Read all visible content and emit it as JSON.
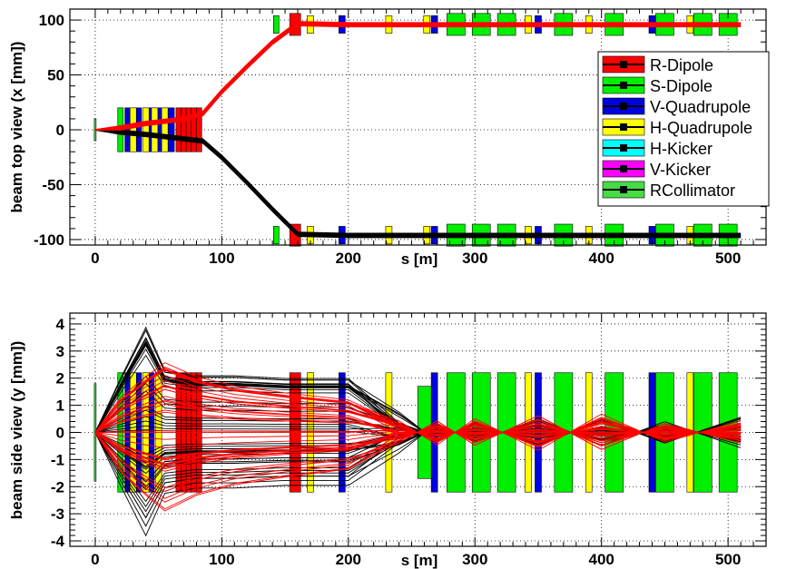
{
  "colors": {
    "r_dipole": "#ff0000",
    "s_dipole": "#00ee00",
    "v_quadrupole": "#0000dd",
    "h_quadrupole": "#ffff00",
    "h_kicker": "#00ffff",
    "v_kicker": "#ff00ff",
    "rcollimator": "#44dd44",
    "beam_a": "#000000",
    "beam_b": "#ff0000"
  },
  "legend": [
    {
      "label": "R-Dipole",
      "color": "#ff0000"
    },
    {
      "label": "S-Dipole",
      "color": "#00ee00"
    },
    {
      "label": "V-Quadrupole",
      "color": "#0000dd"
    },
    {
      "label": "H-Quadrupole",
      "color": "#ffff00"
    },
    {
      "label": "H-Kicker",
      "color": "#00ffff"
    },
    {
      "label": "V-Kicker",
      "color": "#ff00ff"
    },
    {
      "label": "RCollimator",
      "color": "#44dd44"
    }
  ],
  "chart_data": [
    {
      "type": "line",
      "ylabel": "beam top view (x [mm])",
      "xlabel": "s [m]",
      "xlim": [
        -20,
        530
      ],
      "ylim": [
        -105,
        110
      ],
      "xticks": [
        0,
        100,
        200,
        300,
        400,
        500
      ],
      "yticks": [
        -100,
        -50,
        0,
        50,
        100
      ],
      "grid": true,
      "legend_position": "right",
      "series": [
        {
          "color": "#000000",
          "x": [
            0,
            20,
            40,
            55,
            70,
            85,
            100,
            120,
            140,
            160,
            200,
            260,
            300,
            400,
            510
          ],
          "y": [
            0,
            -2,
            -4,
            -6,
            -8,
            -10,
            -25,
            -48,
            -72,
            -95,
            -96,
            -96,
            -96,
            -96,
            -96
          ]
        },
        {
          "color": "#ff0000",
          "x": [
            0,
            20,
            40,
            55,
            70,
            85,
            100,
            120,
            140,
            160,
            200,
            260,
            300,
            400,
            510
          ],
          "y": [
            0,
            2,
            6,
            8,
            10,
            15,
            35,
            58,
            80,
            97,
            96,
            96,
            96,
            96,
            96
          ]
        }
      ],
      "elements": [
        {
          "kind": "v_quadrupole",
          "s": [
            26,
            34,
            44,
            50,
            60,
            195,
            268,
            350,
            440
          ],
          "half_width": [
            20,
            20,
            20,
            20,
            20,
            8,
            8,
            8,
            8
          ],
          "offset": [
            0,
            0,
            0,
            0,
            0,
            96,
            96,
            96,
            96
          ]
        },
        {
          "kind": "h_quadrupole",
          "s": [
            30,
            40,
            47,
            55,
            170,
            232,
            262,
            342,
            390,
            470
          ],
          "half_width": [
            20,
            20,
            20,
            20,
            8,
            8,
            8,
            8,
            8,
            8
          ],
          "offset": [
            0,
            0,
            0,
            0,
            96,
            96,
            96,
            96,
            96,
            96
          ]
        },
        {
          "kind": "r_dipole",
          "s": [
            66,
            70,
            74,
            78,
            82,
            158
          ],
          "half_width": [
            20,
            20,
            20,
            20,
            20,
            10
          ],
          "offset": [
            0,
            0,
            0,
            0,
            0,
            96
          ]
        },
        {
          "kind": "s_dipole",
          "s": [
            20,
            143,
            285,
            305,
            325,
            370,
            410,
            450,
            480,
            500
          ],
          "half_width": [
            20,
            8,
            10,
            10,
            10,
            10,
            10,
            10,
            10,
            10
          ],
          "offset": [
            0,
            96,
            96,
            96,
            96,
            96,
            96,
            96,
            96,
            96
          ]
        },
        {
          "kind": "rcollimator",
          "s": [
            0
          ],
          "half_width": [
            10
          ],
          "offset": [
            0
          ]
        }
      ]
    },
    {
      "type": "line",
      "ylabel": "beam side view (y [mm])",
      "xlabel": "s [m]",
      "xlim": [
        -20,
        530
      ],
      "ylim": [
        -4.2,
        4.4
      ],
      "xticks": [
        0,
        100,
        200,
        300,
        400,
        500
      ],
      "yticks": [
        -4,
        -3,
        -2,
        -1,
        0,
        1,
        2,
        3,
        4
      ],
      "grid": true,
      "envelope": {
        "s": [
          0,
          20,
          40,
          55,
          80,
          110,
          150,
          200,
          240,
          270,
          300,
          350,
          400,
          450,
          510
        ],
        "black_max": [
          0,
          2.0,
          3.9,
          2.3,
          2.1,
          2.1,
          2.0,
          2.0,
          0.8,
          0.6,
          0.4,
          0.9,
          0.5,
          0.7,
          0.6
        ],
        "red_max": [
          0,
          1.5,
          2.4,
          3.0,
          2.4,
          2.0,
          1.7,
          1.4,
          0.5,
          0.9,
          0.6,
          1.3,
          0.8,
          0.7,
          0.5
        ]
      },
      "elements": [
        {
          "kind": "s_dipole",
          "s": [
            20,
            262,
            285,
            305,
            325,
            370,
            410,
            450,
            480,
            500
          ],
          "half_height": [
            2.2,
            1.7,
            2.2,
            2.2,
            2.2,
            2.2,
            2.2,
            2.2,
            2.2,
            2.2
          ]
        },
        {
          "kind": "v_quadrupole",
          "s": [
            26,
            34,
            44,
            195,
            268,
            350,
            440
          ],
          "half_height": [
            2.2,
            2.2,
            2.2,
            2.2,
            2.2,
            2.2,
            2.2
          ]
        },
        {
          "kind": "h_quadrupole",
          "s": [
            30,
            40,
            50,
            170,
            232,
            342,
            390,
            470
          ],
          "half_height": [
            2.2,
            2.2,
            2.2,
            2.2,
            2.2,
            2.2,
            2.2,
            2.2
          ]
        },
        {
          "kind": "r_dipole",
          "s": [
            66,
            70,
            74,
            78,
            82,
            158
          ],
          "half_height": [
            2.2,
            2.2,
            2.2,
            2.2,
            2.2,
            2.2
          ]
        },
        {
          "kind": "rcollimator",
          "s": [
            0
          ],
          "half_height": [
            1.8
          ]
        }
      ]
    }
  ]
}
